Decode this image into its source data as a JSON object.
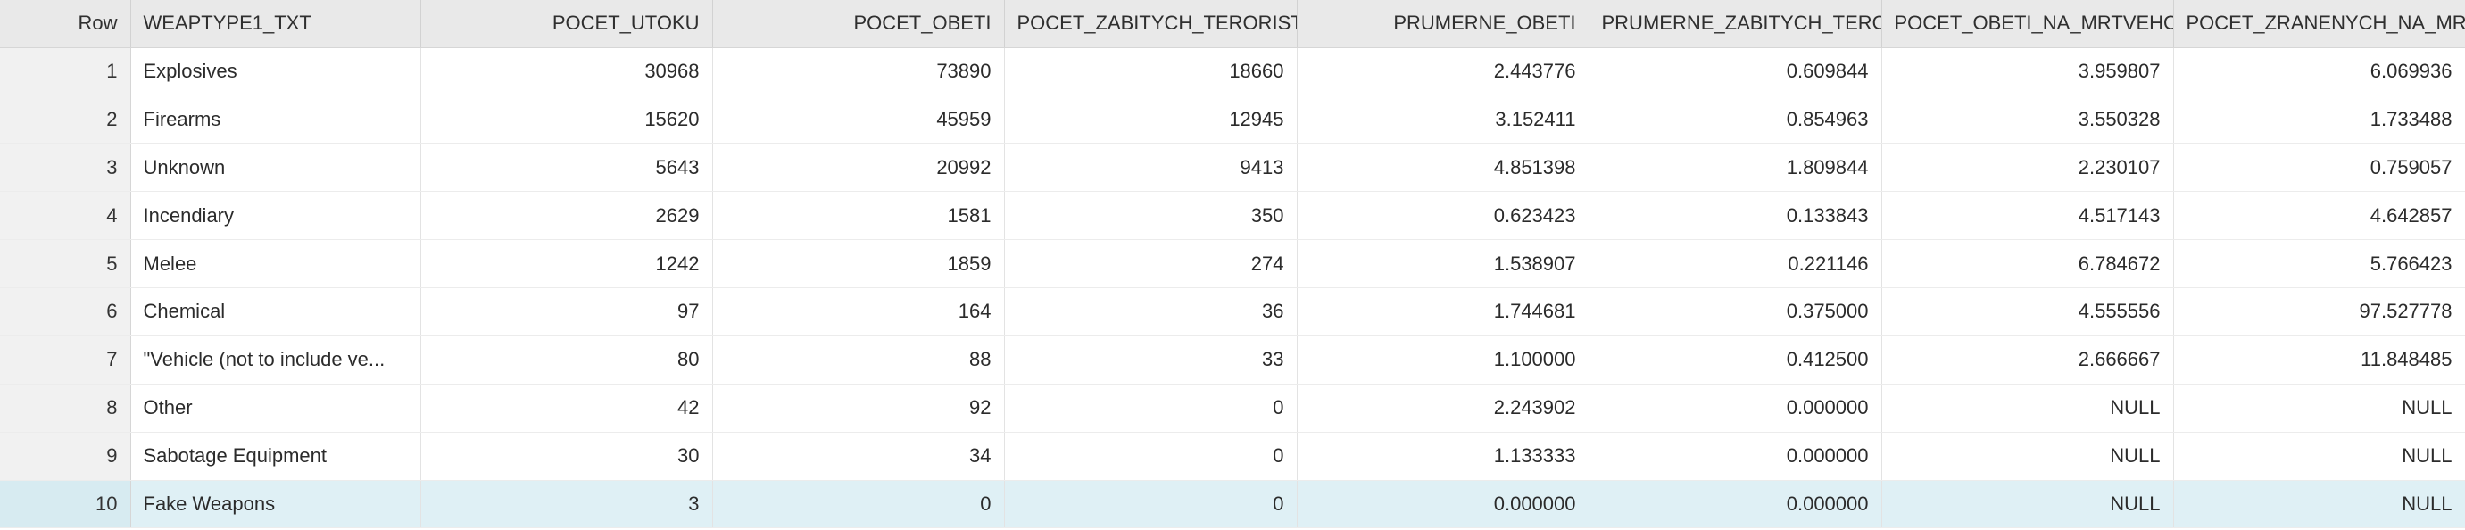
{
  "columns": [
    "Row",
    "WEAPTYPE1_TXT",
    "POCET_UTOKU",
    "POCET_OBETI",
    "POCET_ZABITYCH_TERORISTU",
    "PRUMERNE_OBETI",
    "PRUMERNE_ZABITYCH_TERORISTU",
    "POCET_OBETI_NA_MRTVEHO_TERORISTU",
    "POCET_ZRANENYCH_NA_MRTVEHO"
  ],
  "rows": [
    [
      "1",
      "Explosives",
      "30968",
      "73890",
      "18660",
      "2.443776",
      "0.609844",
      "3.959807",
      "6.069936"
    ],
    [
      "2",
      "Firearms",
      "15620",
      "45959",
      "12945",
      "3.152411",
      "0.854963",
      "3.550328",
      "1.733488"
    ],
    [
      "3",
      "Unknown",
      "5643",
      "20992",
      "9413",
      "4.851398",
      "1.809844",
      "2.230107",
      "0.759057"
    ],
    [
      "4",
      "Incendiary",
      "2629",
      "1581",
      "350",
      "0.623423",
      "0.133843",
      "4.517143",
      "4.642857"
    ],
    [
      "5",
      "Melee",
      "1242",
      "1859",
      "274",
      "1.538907",
      "0.221146",
      "6.784672",
      "5.766423"
    ],
    [
      "6",
      "Chemical",
      "97",
      "164",
      "36",
      "1.744681",
      "0.375000",
      "4.555556",
      "97.527778"
    ],
    [
      "7",
      "\"Vehicle (not to include ve...",
      "80",
      "88",
      "33",
      "1.100000",
      "0.412500",
      "2.666667",
      "11.848485"
    ],
    [
      "8",
      "Other",
      "42",
      "92",
      "0",
      "2.243902",
      "0.000000",
      "NULL",
      "NULL"
    ],
    [
      "9",
      "Sabotage Equipment",
      "30",
      "34",
      "0",
      "1.133333",
      "0.000000",
      "NULL",
      "NULL"
    ],
    [
      "10",
      "Fake Weapons",
      "3",
      "0",
      "0",
      "0.000000",
      "0.000000",
      "NULL",
      "NULL"
    ]
  ]
}
